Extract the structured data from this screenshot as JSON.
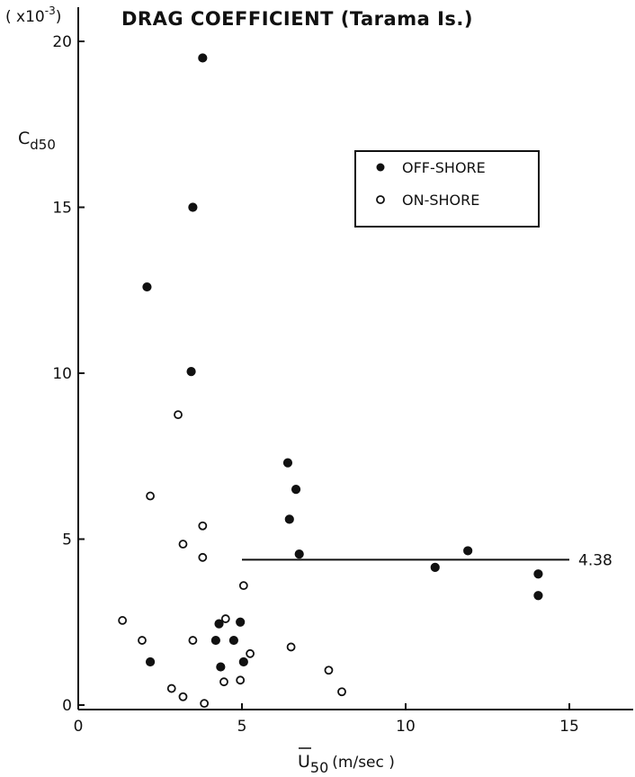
{
  "chart_data": {
    "type": "scatter",
    "title": "DRAG COEFFICIENT (Tarama Is.)",
    "xlabel": "U",
    "xlabel_subscript": "50",
    "xlabel_unit": "(m/sec )",
    "ylabel": "C",
    "ylabel_subscript": "d50",
    "yscale_note": "( x10",
    "yscale_exponent": "-3",
    "yscale_close": ")",
    "xlim": [
      0,
      17
    ],
    "ylim": [
      0,
      21
    ],
    "xticks": [
      0,
      5,
      10,
      15
    ],
    "yticks": [
      0,
      5,
      10,
      15,
      20
    ],
    "legend": [
      "OFF-SHORE",
      "ON-SHORE"
    ],
    "legend_position": "upper-right",
    "series": [
      {
        "name": "OFF-SHORE",
        "marker": "filled-circle",
        "points": [
          [
            3.8,
            19.5
          ],
          [
            3.5,
            15.0
          ],
          [
            2.1,
            12.6
          ],
          [
            3.45,
            10.05
          ],
          [
            6.4,
            7.3
          ],
          [
            6.65,
            6.5
          ],
          [
            6.45,
            5.6
          ],
          [
            6.75,
            4.55
          ],
          [
            10.9,
            4.15
          ],
          [
            11.9,
            4.65
          ],
          [
            14.05,
            3.95
          ],
          [
            14.05,
            3.3
          ],
          [
            4.3,
            2.45
          ],
          [
            4.95,
            2.5
          ],
          [
            4.2,
            1.95
          ],
          [
            4.75,
            1.95
          ],
          [
            2.2,
            1.3
          ],
          [
            4.35,
            1.15
          ],
          [
            5.05,
            1.3
          ]
        ]
      },
      {
        "name": "ON-SHORE",
        "marker": "open-circle",
        "points": [
          [
            3.05,
            8.75
          ],
          [
            2.2,
            6.3
          ],
          [
            3.8,
            5.4
          ],
          [
            3.2,
            4.85
          ],
          [
            3.8,
            4.45
          ],
          [
            5.05,
            3.6
          ],
          [
            1.35,
            2.55
          ],
          [
            4.5,
            2.6
          ],
          [
            1.95,
            1.95
          ],
          [
            3.5,
            1.95
          ],
          [
            6.5,
            1.75
          ],
          [
            5.25,
            1.55
          ],
          [
            4.95,
            0.75
          ],
          [
            4.45,
            0.7
          ],
          [
            7.65,
            1.05
          ],
          [
            2.85,
            0.5
          ],
          [
            3.2,
            0.25
          ],
          [
            8.05,
            0.4
          ],
          [
            3.85,
            0.05
          ]
        ]
      }
    ],
    "reference_line": {
      "y": 4.38,
      "x_start": 5.0,
      "x_end": 15.0,
      "label": "4.38"
    }
  }
}
